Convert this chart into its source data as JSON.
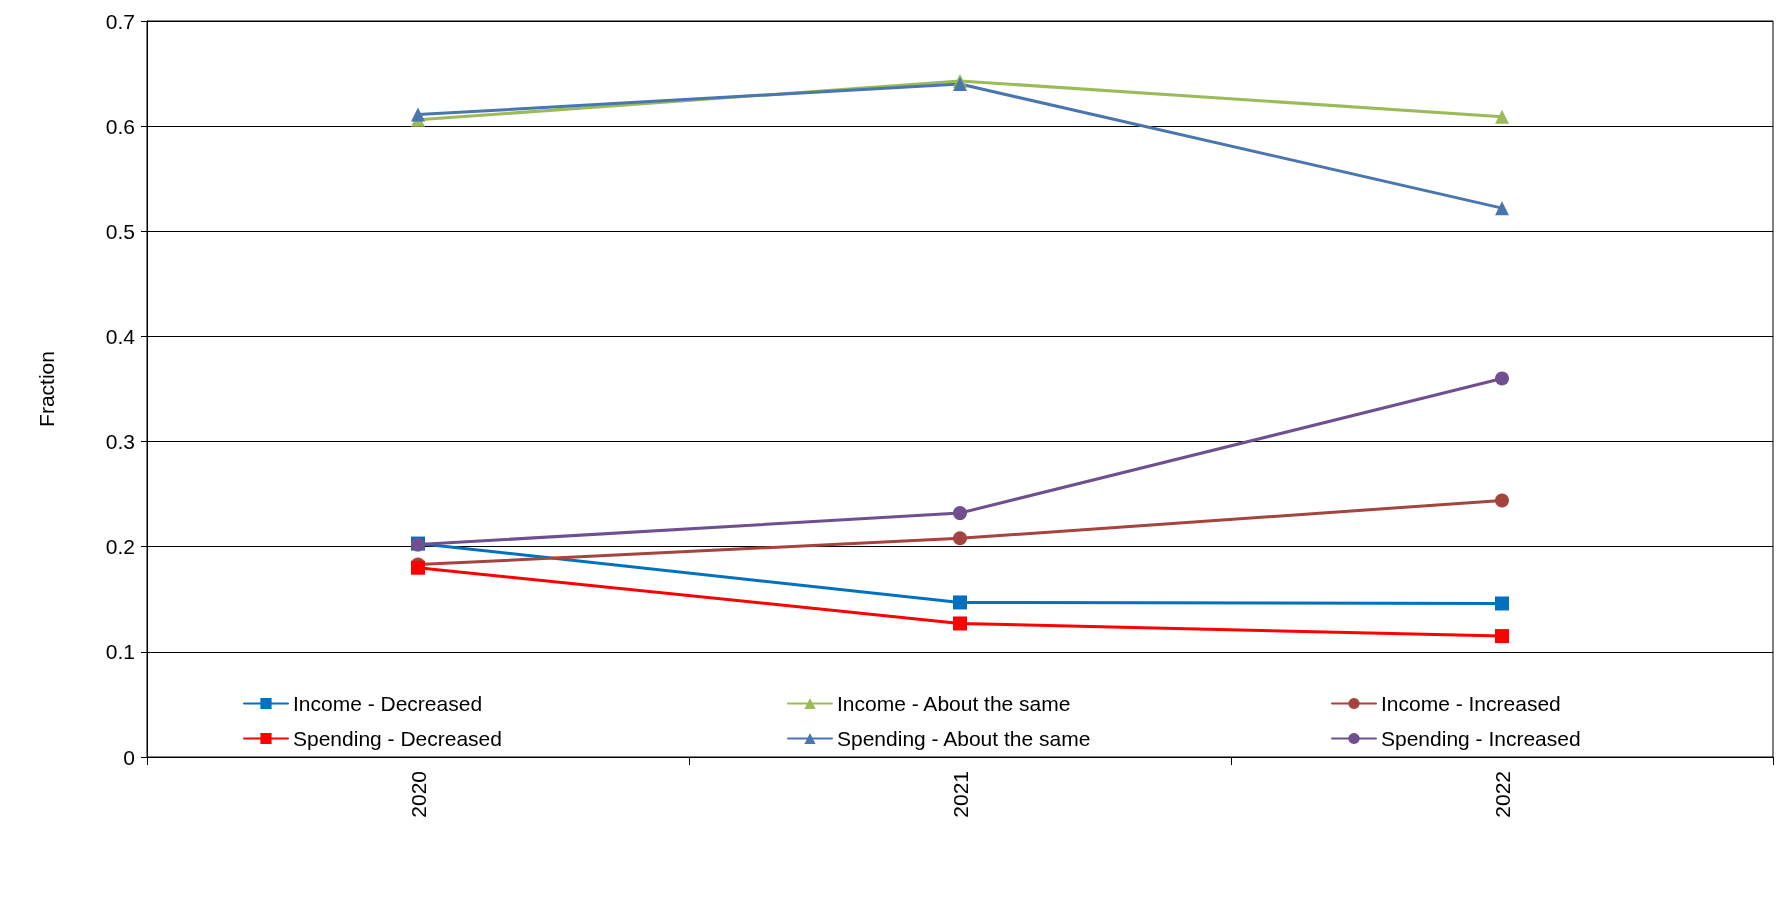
{
  "chart_data": {
    "type": "line",
    "ylabel": "Fraction",
    "categories": [
      "2020",
      "2021",
      "2022"
    ],
    "ylim": [
      0,
      0.7
    ],
    "yticks": [
      0,
      0.1,
      0.2,
      0.3,
      0.4,
      0.5,
      0.6,
      0.7
    ],
    "grid": "y",
    "legend": "bottom",
    "series": [
      {
        "name": "Income - Decreased",
        "color": "#0070c0",
        "marker": "square",
        "values": [
          0.203,
          0.147,
          0.146
        ]
      },
      {
        "name": "Income - About the same",
        "color": "#9bbb59",
        "marker": "triangle",
        "values": [
          0.606,
          0.643,
          0.609
        ]
      },
      {
        "name": "Income - Increased",
        "color": "#a5433f",
        "marker": "circle",
        "values": [
          0.183,
          0.208,
          0.244
        ]
      },
      {
        "name": "Spending - Decreased",
        "color": "#ff0000",
        "marker": "square",
        "values": [
          0.18,
          0.127,
          0.115
        ]
      },
      {
        "name": "Spending - About the same",
        "color": "#4a76b0",
        "marker": "triangle",
        "values": [
          0.611,
          0.64,
          0.522
        ]
      },
      {
        "name": "Spending - Increased",
        "color": "#6f4f8f",
        "marker": "circle",
        "values": [
          0.202,
          0.232,
          0.36
        ]
      }
    ]
  }
}
